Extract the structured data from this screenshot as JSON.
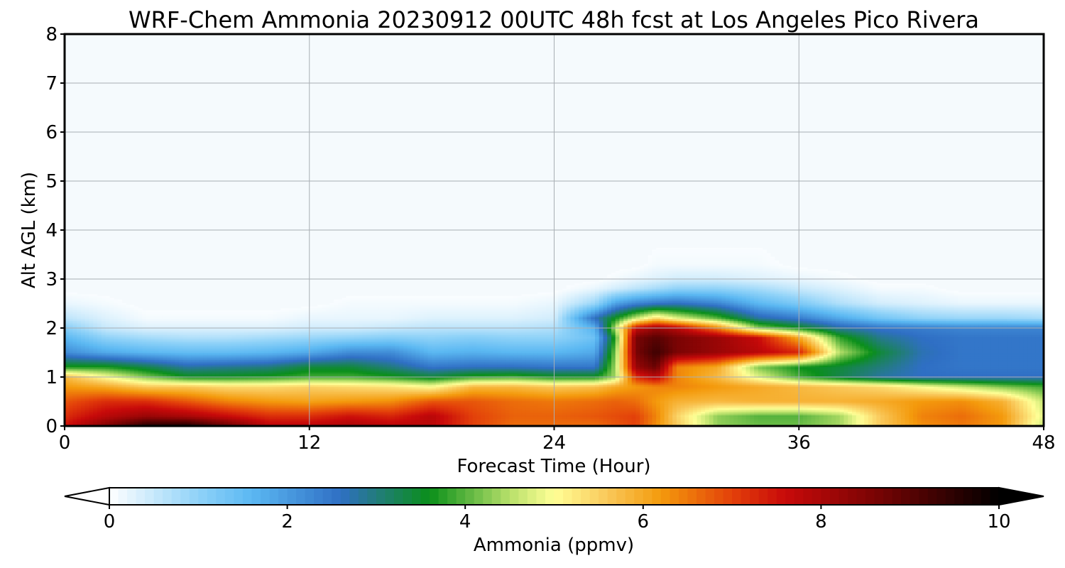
{
  "chart_data": {
    "type": "heatmap",
    "title": "WRF-Chem Ammonia  20230912 00UTC 48h fcst at Los Angeles Pico Rivera",
    "xlabel": "Forecast Time (Hour)",
    "ylabel": "Alt AGL (km)",
    "xlim": [
      0,
      48
    ],
    "ylim": [
      0,
      8
    ],
    "x_ticks": [
      0,
      12,
      24,
      36,
      48
    ],
    "y_ticks": [
      0,
      1,
      2,
      3,
      4,
      5,
      6,
      7,
      8
    ],
    "x_tick_labels": [
      "0",
      "12",
      "24",
      "36",
      "48"
    ],
    "y_tick_labels": [
      "0",
      "1",
      "2",
      "3",
      "4",
      "5",
      "6",
      "7",
      "8"
    ],
    "grid": true,
    "colorbar": {
      "label": "Ammonia  (ppmv)",
      "orientation": "horizontal",
      "position": "bottom",
      "range": [
        0,
        10
      ],
      "extend": "both",
      "ticks": [
        0,
        2,
        4,
        6,
        8,
        10
      ],
      "tick_labels": [
        "0",
        "2",
        "4",
        "6",
        "8",
        "10"
      ],
      "stops": [
        {
          "value": 0,
          "color": "#ffffff"
        },
        {
          "value": 1,
          "color": "#8fd2f8"
        },
        {
          "value": 1.6,
          "color": "#5bb8f2"
        },
        {
          "value": 2.6,
          "color": "#2f6fc4"
        },
        {
          "value": 3.0,
          "color": "#227c7c"
        },
        {
          "value": 3.6,
          "color": "#0a8f1a"
        },
        {
          "value": 4.5,
          "color": "#b8e06a"
        },
        {
          "value": 5.0,
          "color": "#ffff96"
        },
        {
          "value": 5.6,
          "color": "#f9c85a"
        },
        {
          "value": 6.2,
          "color": "#f49a0c"
        },
        {
          "value": 7.0,
          "color": "#e3400a"
        },
        {
          "value": 7.6,
          "color": "#c80a0a"
        },
        {
          "value": 8.6,
          "color": "#7a0404"
        },
        {
          "value": 10,
          "color": "#000000"
        }
      ],
      "under_color": "#ffffff",
      "over_color": "#000000"
    },
    "field": {
      "description": "Ammonia mixing ratio (ppmv) vs forecast hour (columns) and altitude km (rows)",
      "x": [
        0,
        2,
        4,
        6,
        8,
        10,
        12,
        14,
        16,
        18,
        20,
        22,
        24,
        26,
        27,
        28,
        29,
        30,
        32,
        34,
        36,
        38,
        40,
        42,
        44,
        46,
        48
      ],
      "y": [
        0,
        0.2,
        0.5,
        0.8,
        1.0,
        1.2,
        1.5,
        1.8,
        2.0,
        2.2,
        2.5,
        2.8,
        3.0,
        3.3,
        4.0
      ],
      "z": [
        [
          7.5,
          8.5,
          9.6,
          9.7,
          8.8,
          7.8,
          7.8,
          8.0,
          7.8,
          7.8,
          7.0,
          6.6,
          6.6,
          6.6,
          6.8,
          7.0,
          6.3,
          5.6,
          4.3,
          4.1,
          4.1,
          4.4,
          5.6,
          6.3,
          6.5,
          6.2,
          4.6
        ],
        [
          7.2,
          7.8,
          8.2,
          8.0,
          7.6,
          7.2,
          7.2,
          7.5,
          7.3,
          7.8,
          7.0,
          6.7,
          6.7,
          6.8,
          6.9,
          7.0,
          6.4,
          5.5,
          4.3,
          4.0,
          4.0,
          4.4,
          5.6,
          6.4,
          6.6,
          6.2,
          4.8
        ],
        [
          6.8,
          7.2,
          7.2,
          6.8,
          6.4,
          6.2,
          6.1,
          6.2,
          6.3,
          6.8,
          6.8,
          6.6,
          6.5,
          6.6,
          6.7,
          6.6,
          6.2,
          5.9,
          5.8,
          5.9,
          5.9,
          5.9,
          6.0,
          6.2,
          6.3,
          5.9,
          4.6
        ],
        [
          6.2,
          6.0,
          5.6,
          5.6,
          5.4,
          5.4,
          5.5,
          5.4,
          5.3,
          5.0,
          5.8,
          5.8,
          5.6,
          5.7,
          6.0,
          6.2,
          6.4,
          6.4,
          6.2,
          6.0,
          5.8,
          5.6,
          5.4,
          5.0,
          4.6,
          4.2,
          3.9
        ],
        [
          5.8,
          5.0,
          4.2,
          3.6,
          3.6,
          3.7,
          3.9,
          3.9,
          3.7,
          3.4,
          3.8,
          3.9,
          3.6,
          3.6,
          4.4,
          7.2,
          7.8,
          6.4,
          5.8,
          4.8,
          3.9,
          3.3,
          2.8,
          2.6,
          2.6,
          2.6,
          2.6
        ],
        [
          3.7,
          3.7,
          3.3,
          2.8,
          2.9,
          3.0,
          3.4,
          3.4,
          3.0,
          2.5,
          2.6,
          2.6,
          2.5,
          2.5,
          4.4,
          8.2,
          8.8,
          6.4,
          6.0,
          4.2,
          3.6,
          3.4,
          3.0,
          2.6,
          2.5,
          2.5,
          2.5
        ],
        [
          2.2,
          1.8,
          1.6,
          1.5,
          1.5,
          1.6,
          1.8,
          2.2,
          2.2,
          1.6,
          1.7,
          1.6,
          1.6,
          1.8,
          4.2,
          8.6,
          9.3,
          8.6,
          8.2,
          7.8,
          7.3,
          4.5,
          3.4,
          2.7,
          2.5,
          2.5,
          2.5
        ],
        [
          1.6,
          1.0,
          0.8,
          0.7,
          0.7,
          0.8,
          0.9,
          1.0,
          1.1,
          1.0,
          1.1,
          1.0,
          1.0,
          1.4,
          3.8,
          8.6,
          9.0,
          8.6,
          8.2,
          7.6,
          6.0,
          3.8,
          2.9,
          2.6,
          2.5,
          2.5,
          2.5
        ],
        [
          1.1,
          0.5,
          0.3,
          0.3,
          0.3,
          0.3,
          0.4,
          0.4,
          0.5,
          0.6,
          0.6,
          0.6,
          0.7,
          1.7,
          4.5,
          7.6,
          8.2,
          7.8,
          6.4,
          4.3,
          3.6,
          2.8,
          2.5,
          2.4,
          2.3,
          2.3,
          2.3
        ],
        [
          0.6,
          0.3,
          0.1,
          0.1,
          0.1,
          0.1,
          0.2,
          0.2,
          0.2,
          0.3,
          0.3,
          0.3,
          0.4,
          2.6,
          3.6,
          4.6,
          5.4,
          4.8,
          4.0,
          2.8,
          2.4,
          1.8,
          1.3,
          1.0,
          0.9,
          0.9,
          0.8
        ],
        [
          0.2,
          0.1,
          0.0,
          0.0,
          0.0,
          0.0,
          0.0,
          0.1,
          0.1,
          0.1,
          0.1,
          0.1,
          0.2,
          0.9,
          1.9,
          2.3,
          2.5,
          2.6,
          2.3,
          1.6,
          1.2,
          0.7,
          0.4,
          0.3,
          0.2,
          0.2,
          0.2
        ],
        [
          0.0,
          0.0,
          0.0,
          0.0,
          0.0,
          0.0,
          0.0,
          0.0,
          0.0,
          0.0,
          0.0,
          0.0,
          0.0,
          0.2,
          0.4,
          0.6,
          0.8,
          1.0,
          1.0,
          0.8,
          0.5,
          0.3,
          0.1,
          0.1,
          0.0,
          0.0,
          0.0
        ],
        [
          0.0,
          0.0,
          0.0,
          0.0,
          0.0,
          0.0,
          0.0,
          0.0,
          0.0,
          0.0,
          0.0,
          0.0,
          0.0,
          0.0,
          0.1,
          0.2,
          0.3,
          0.4,
          0.4,
          0.3,
          0.2,
          0.1,
          0.0,
          0.0,
          0.0,
          0.0,
          0.0
        ],
        [
          0.0,
          0.0,
          0.0,
          0.0,
          0.0,
          0.0,
          0.0,
          0.0,
          0.0,
          0.0,
          0.0,
          0.0,
          0.0,
          0.0,
          0.0,
          0.0,
          0.1,
          0.1,
          0.1,
          0.1,
          0.0,
          0.0,
          0.0,
          0.0,
          0.0,
          0.0,
          0.0
        ],
        [
          0.0,
          0.0,
          0.0,
          0.0,
          0.0,
          0.0,
          0.0,
          0.0,
          0.0,
          0.0,
          0.0,
          0.0,
          0.0,
          0.0,
          0.0,
          0.0,
          0.0,
          0.0,
          0.0,
          0.0,
          0.0,
          0.0,
          0.0,
          0.0,
          0.0,
          0.0,
          0.0
        ]
      ]
    },
    "background_color": "#f5fafd"
  }
}
